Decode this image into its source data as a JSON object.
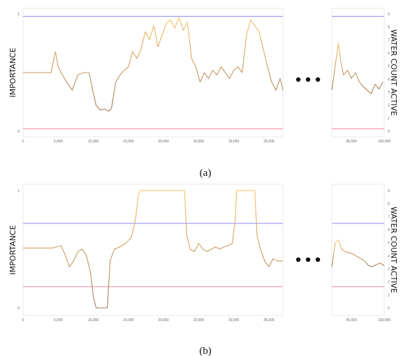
{
  "figure": {
    "captions": [
      "(a)",
      "(b)"
    ],
    "ellipsis_dots": 3
  },
  "chart_data": [
    {
      "type": "line",
      "subfigure": "(a)",
      "title": "",
      "ylabel": "IMPORTANCE",
      "y2label": "WATER COUNT ACTIVE",
      "ylim": [
        0,
        1
      ],
      "yticks": [
        "0",
        "1"
      ],
      "y2lim": [
        0,
        9
      ],
      "y2ticks": [
        "0",
        "1",
        "2",
        "3",
        "4",
        "5",
        "6",
        "7",
        "8",
        "9"
      ],
      "main_xlim": [
        0,
        37000
      ],
      "main_xticks": [
        "0",
        "5,000",
        "10,000",
        "15,000",
        "20,000",
        "25,000",
        "30,000",
        "35,000"
      ],
      "inset_xlim": [
        92000,
        100000
      ],
      "inset_xticks": [
        "95,000",
        "100,000"
      ],
      "threshold_lines": [
        {
          "y": 0.98,
          "color": "#8a8aee"
        },
        {
          "y": 0.02,
          "color": "#f08a9a"
        }
      ],
      "series": [
        {
          "color": "#eaa84a",
          "x": [
            0,
            4000,
            4600,
            5000,
            5400,
            6200,
            7000,
            7800,
            8600,
            9400,
            9800,
            10400,
            11000,
            11600,
            12200,
            12600,
            13200,
            13800,
            14400,
            15000,
            15600,
            16200,
            16800,
            17400,
            18000,
            18600,
            19200,
            19800,
            20400,
            21000,
            21600,
            22200,
            22800,
            23400,
            24000,
            24600,
            25200,
            25800,
            26400,
            27000,
            27600,
            28200,
            28800,
            29400,
            30000,
            30600,
            31200,
            31800,
            32400,
            33000,
            33600,
            34200,
            34800,
            35400,
            36000,
            36600,
            37000
          ],
          "y": [
            0.5,
            0.5,
            0.68,
            0.55,
            0.5,
            0.42,
            0.35,
            0.48,
            0.5,
            0.5,
            0.38,
            0.22,
            0.18,
            0.19,
            0.17,
            0.2,
            0.42,
            0.48,
            0.52,
            0.55,
            0.68,
            0.62,
            0.7,
            0.85,
            0.78,
            0.9,
            0.72,
            0.82,
            0.92,
            0.95,
            0.88,
            0.97,
            0.86,
            0.93,
            0.62,
            0.55,
            0.42,
            0.5,
            0.45,
            0.52,
            0.48,
            0.55,
            0.5,
            0.45,
            0.52,
            0.55,
            0.5,
            0.82,
            0.95,
            0.9,
            0.85,
            0.7,
            0.55,
            0.42,
            0.35,
            0.45,
            0.35
          ]
        }
      ],
      "inset_series": [
        {
          "color": "#eaa84a",
          "x": [
            92000,
            92500,
            93000,
            93400,
            93800,
            94400,
            95000,
            95600,
            96200,
            96800,
            97400,
            98000,
            98600,
            99200,
            99800
          ],
          "y": [
            0.35,
            0.55,
            0.75,
            0.58,
            0.48,
            0.52,
            0.45,
            0.5,
            0.42,
            0.38,
            0.35,
            0.32,
            0.4,
            0.36,
            0.42
          ]
        }
      ]
    },
    {
      "type": "line",
      "subfigure": "(b)",
      "title": "",
      "ylabel": "IMPORTANCE",
      "y2label": "WATER COUNT ACTIVE",
      "ylim": [
        0,
        1
      ],
      "yticks": [
        "0",
        "1"
      ],
      "y2lim": [
        0,
        9
      ],
      "y2ticks": [
        "0",
        "1",
        "2",
        "3",
        "4",
        "5",
        "6",
        "7",
        "8",
        "9"
      ],
      "main_xlim": [
        0,
        37000
      ],
      "main_xticks": [
        "0",
        "5,000",
        "10,000",
        "15,000",
        "20,000",
        "25,000",
        "30,000",
        "35,000"
      ],
      "inset_xlim": [
        92000,
        100000
      ],
      "inset_xticks": [
        "95,000",
        "100,000"
      ],
      "threshold_lines": [
        {
          "y": 0.72,
          "color": "#8a8aee"
        },
        {
          "y": 0.18,
          "color": "#f08a9a"
        }
      ],
      "series": [
        {
          "color": "#eaa84a",
          "x": [
            0,
            4200,
            4800,
            5400,
            6000,
            6600,
            7200,
            7800,
            8400,
            9000,
            9600,
            10000,
            10400,
            11000,
            11600,
            12000,
            12400,
            13000,
            13800,
            14600,
            15400,
            16000,
            16400,
            16600,
            23000,
            23300,
            23800,
            24400,
            25000,
            25600,
            26200,
            26800,
            27400,
            28000,
            28600,
            29200,
            29800,
            30200,
            30400,
            33000,
            33300,
            33800,
            34400,
            35000,
            35600,
            36200,
            37000
          ],
          "y": [
            0.51,
            0.51,
            0.52,
            0.53,
            0.45,
            0.35,
            0.4,
            0.48,
            0.5,
            0.45,
            0.3,
            0.1,
            0.0,
            0.0,
            0.0,
            0.0,
            0.4,
            0.5,
            0.52,
            0.55,
            0.6,
            0.75,
            0.95,
            1.0,
            1.0,
            0.62,
            0.5,
            0.48,
            0.55,
            0.5,
            0.48,
            0.5,
            0.52,
            0.5,
            0.52,
            0.53,
            0.55,
            0.75,
            1.0,
            1.0,
            0.62,
            0.5,
            0.4,
            0.35,
            0.42,
            0.4,
            0.4
          ]
        }
      ],
      "inset_series": [
        {
          "color": "#eaa84a",
          "x": [
            92000,
            92500,
            93000,
            93500,
            94000,
            94600,
            95200,
            95800,
            96400,
            97000,
            97600,
            98200,
            98800,
            99400,
            100000
          ],
          "y": [
            0.35,
            0.55,
            0.58,
            0.5,
            0.48,
            0.47,
            0.46,
            0.44,
            0.42,
            0.4,
            0.36,
            0.35,
            0.37,
            0.38,
            0.36
          ]
        }
      ]
    }
  ]
}
